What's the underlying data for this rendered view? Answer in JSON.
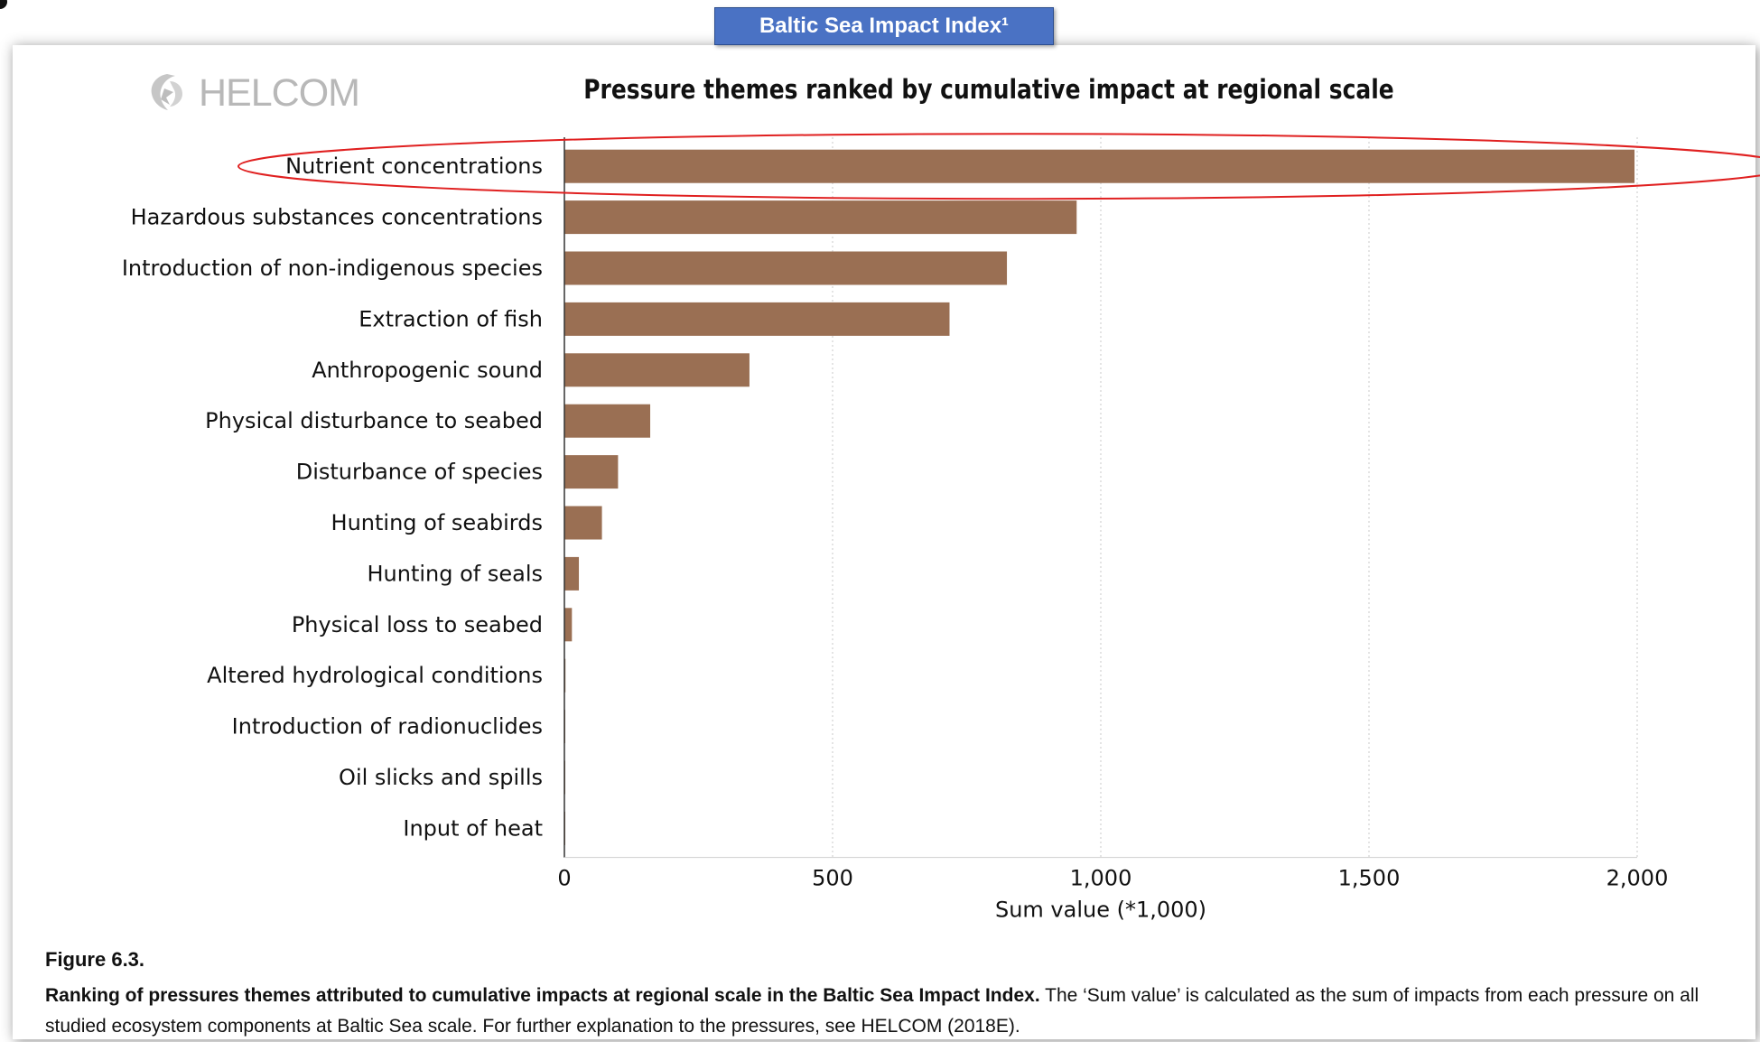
{
  "header": {
    "badge_label": "Baltic Sea Impact Index¹"
  },
  "logo": {
    "text": "HELCOM",
    "icon": "helcom-logo-icon"
  },
  "chart_data": {
    "type": "bar",
    "orientation": "horizontal",
    "title": "Pressure themes ranked by cumulative impact at regional scale",
    "xlabel": "Sum value (*1,000)",
    "ylabel": "",
    "xlim": [
      0,
      2000
    ],
    "xticks": [
      0,
      500,
      1000,
      1500,
      2000
    ],
    "xtick_labels": [
      "0",
      "500",
      "1,000",
      "1,500",
      "2,000"
    ],
    "grid": "vertical-dotted",
    "categories": [
      "Nutrient concentrations",
      "Hazardous substances concentrations",
      "Introduction of non-indigenous species",
      "Extraction of fish",
      "Anthropogenic sound",
      "Physical disturbance to seabed",
      "Disturbance of species",
      "Hunting of seabirds",
      "Hunting of seals",
      "Physical loss to seabed",
      "Altered hydrological conditions",
      "Introduction of radionuclides",
      "Oil slicks and spills",
      "Input of heat"
    ],
    "values": [
      1995,
      955,
      825,
      718,
      345,
      160,
      100,
      70,
      27,
      14,
      2,
      1,
      1,
      1
    ],
    "bar_color": "#9a6f53",
    "highlight": {
      "category": "Nutrient concentrations",
      "style": "red-ellipse",
      "color": "#e02020"
    }
  },
  "caption": {
    "figure_number": "Figure 6.3.",
    "bold_text": "Ranking of pressures themes attributed to cumulative impacts at regional scale in the Baltic Sea Impact Index.",
    "normal_text": " The ‘Sum value’ is calculated as the sum of impacts from each pressure on all studied ecosystem components at Baltic Sea scale. For further explanation to the pressures, see HELCOM (2018E)."
  }
}
